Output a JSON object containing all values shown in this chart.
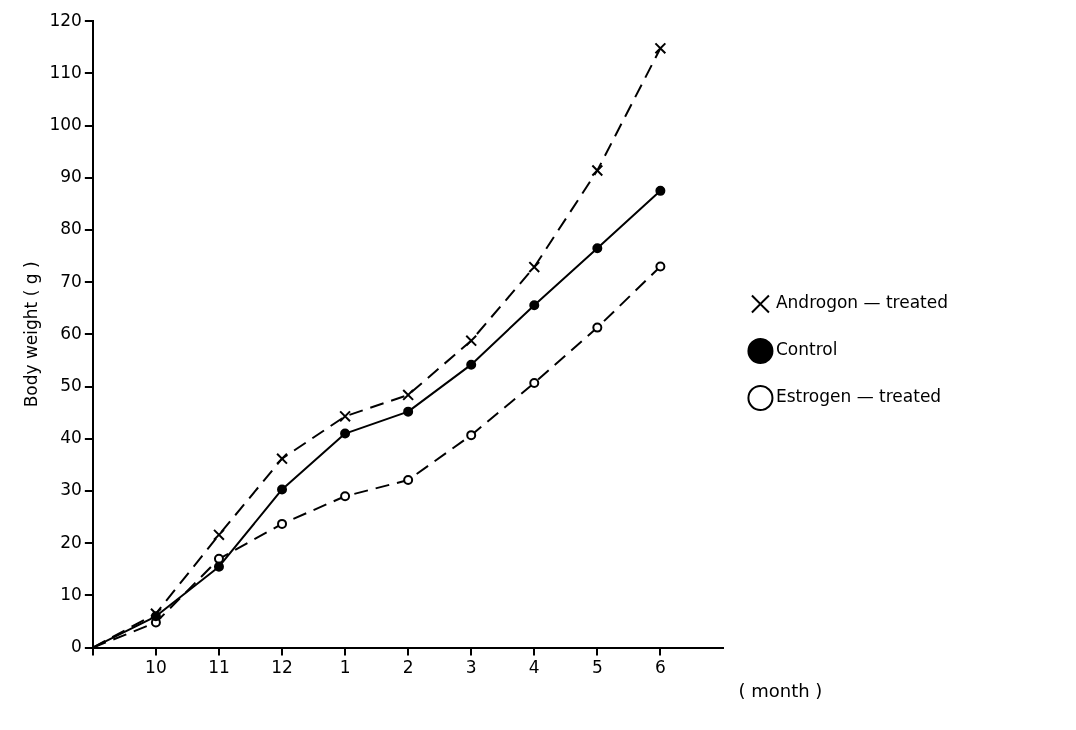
{
  "chart_data": {
    "type": "line",
    "xlabel": "( month )",
    "ylabel": "Body weight ( g )",
    "categories": [
      null,
      "10",
      "11",
      "12",
      "1",
      "2",
      "3",
      "4",
      "5",
      "6"
    ],
    "ylim": [
      0,
      120
    ],
    "yticks": [
      0,
      10,
      20,
      30,
      40,
      50,
      60,
      70,
      80,
      90,
      100,
      110,
      120
    ],
    "grid": false,
    "legend": "right",
    "series": [
      {
        "name": "Androgon — treated",
        "color": "#000000",
        "marker": "cross",
        "line_style": "dashed",
        "values": [
          0,
          6.5,
          21.6,
          36.2,
          44.3,
          48.4,
          58.8,
          72.9,
          91.4,
          114.8
        ]
      },
      {
        "name": "Control",
        "color": "#000000",
        "marker": "circle",
        "line_style": "solid",
        "values": [
          0,
          6,
          15.5,
          30.3,
          41,
          45.2,
          54.2,
          65.6,
          76.5,
          87.5
        ]
      },
      {
        "name": "Estrogen — treated",
        "color": "#000000",
        "marker": "circle",
        "line_style": "dashed",
        "values": [
          0,
          4.8,
          17,
          23.7,
          29,
          32.1,
          40.7,
          50.7,
          61.3,
          73
        ]
      }
    ]
  }
}
